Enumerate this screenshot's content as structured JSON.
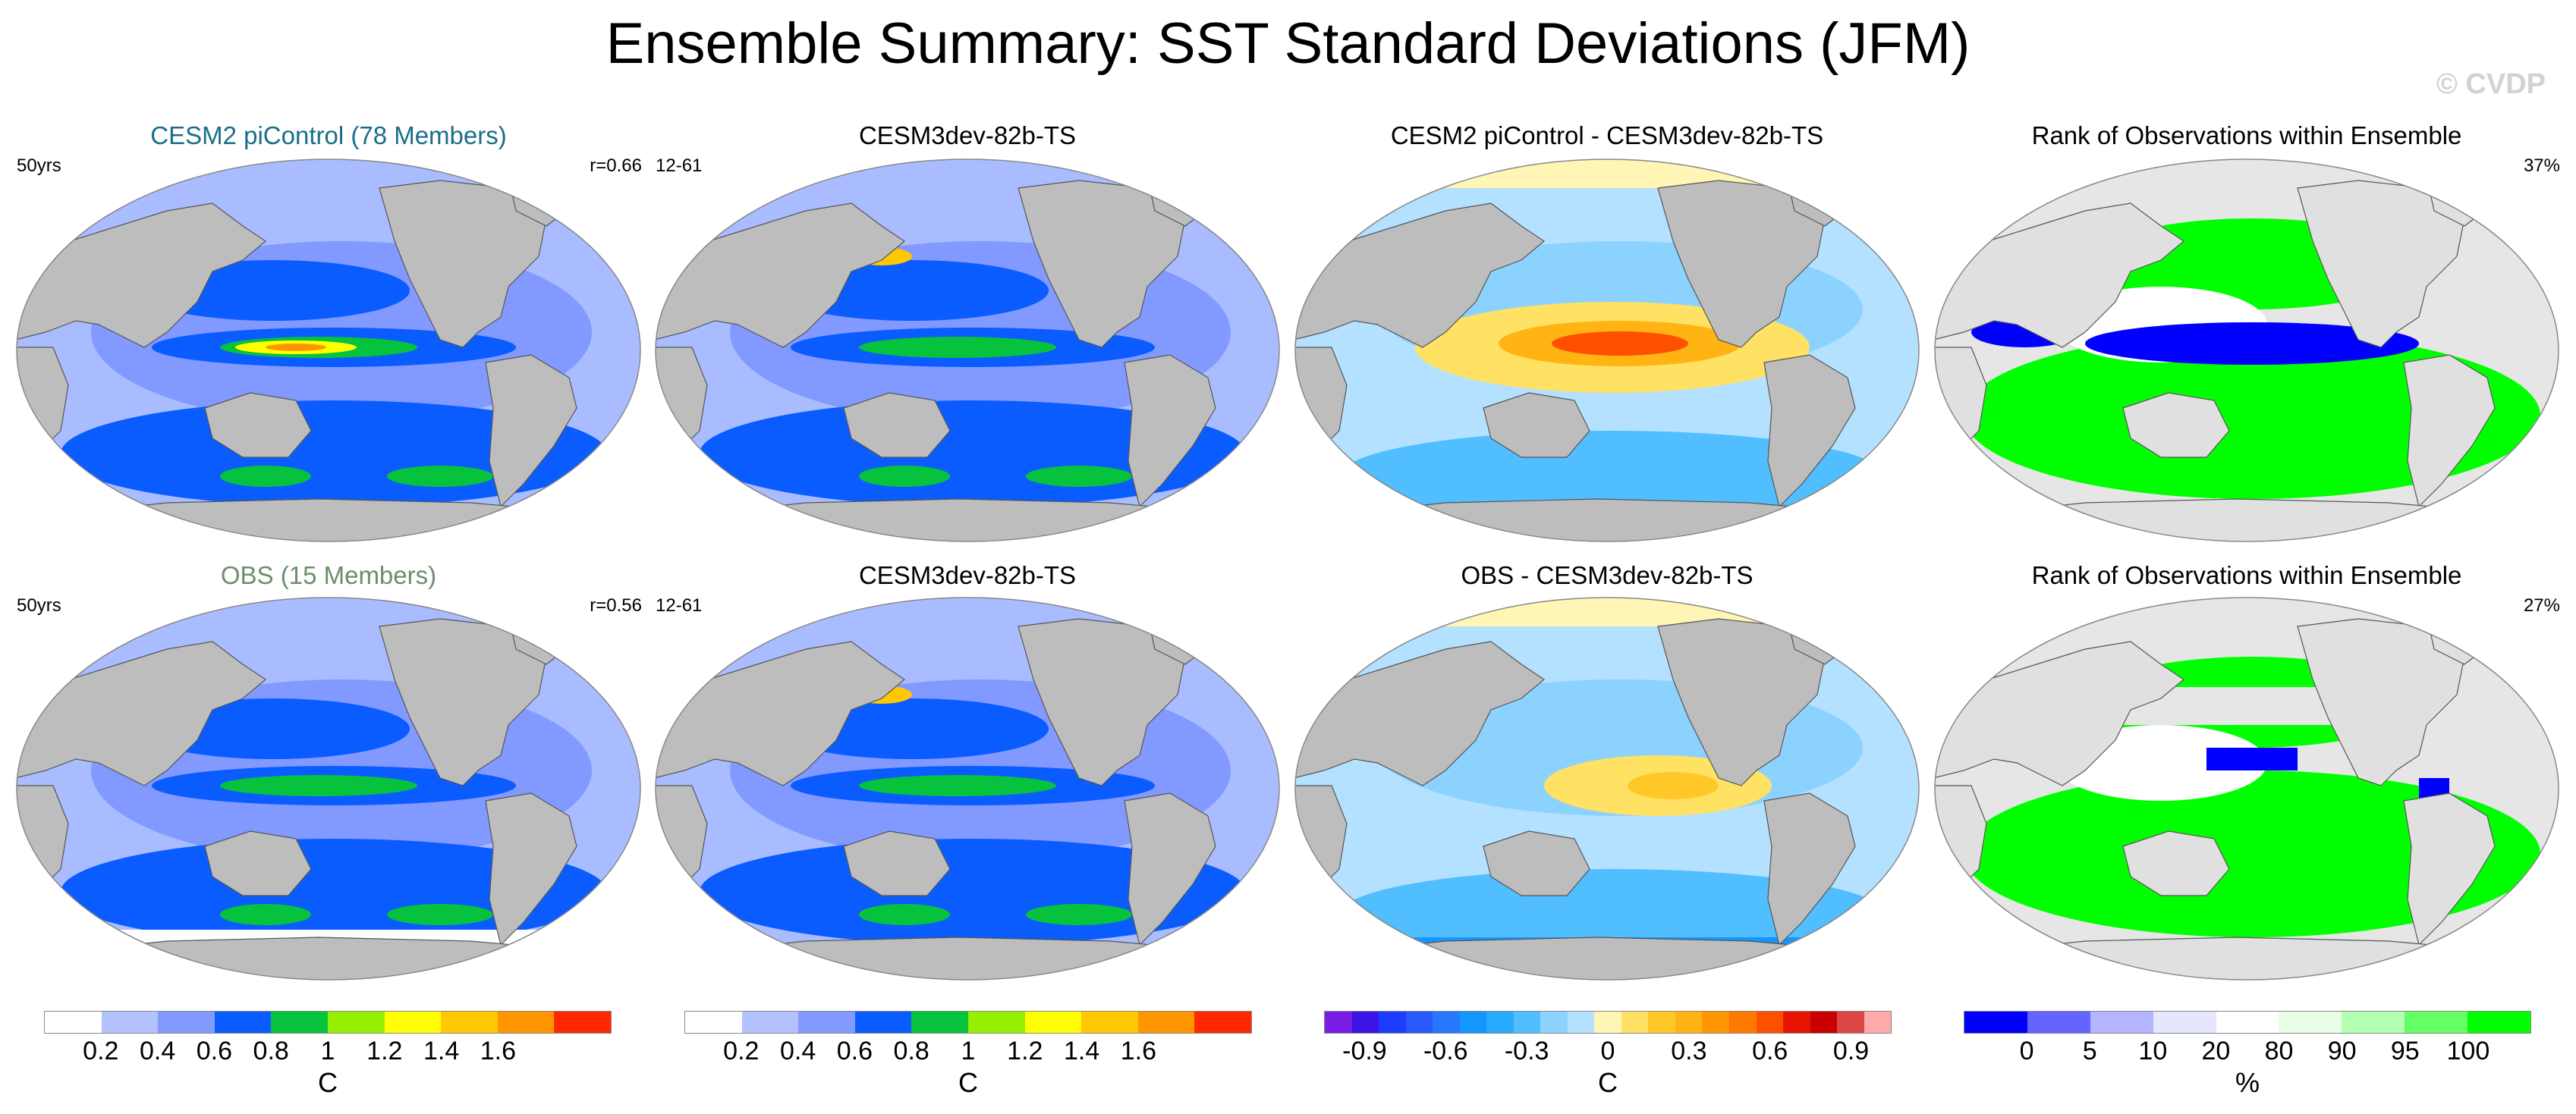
{
  "title": "Ensemble Summary: SST Standard Deviations (JFM)",
  "watermark": "© CVDP",
  "colors": {
    "ocean_base": "#a9bcff",
    "land": "#bdbdbd",
    "title_teal": "#1a6e8a",
    "title_green": "#6d8d6d"
  },
  "panels": [
    {
      "id": "r1c1",
      "title": "CESM2 piControl (78 Members)",
      "title_color": "#1a6e8a",
      "left_label": "50yrs",
      "right_label": "r=0.66",
      "scheme": "sd"
    },
    {
      "id": "r1c2",
      "title": "CESM3dev-82b-TS",
      "title_color": "#000000",
      "left_label": "12-61",
      "right_label": "",
      "scheme": "sd"
    },
    {
      "id": "r1c3",
      "title": "CESM2 piControl - CESM3dev-82b-TS",
      "title_color": "#000000",
      "left_label": "",
      "right_label": "",
      "scheme": "diff"
    },
    {
      "id": "r1c4",
      "title": "Rank of Observations within Ensemble",
      "title_color": "#000000",
      "left_label": "",
      "right_label": "37%",
      "scheme": "rank"
    },
    {
      "id": "r2c1",
      "title": "OBS (15 Members)",
      "title_color": "#6d8d6d",
      "left_label": "50yrs",
      "right_label": "r=0.56",
      "scheme": "sd"
    },
    {
      "id": "r2c2",
      "title": "CESM3dev-82b-TS",
      "title_color": "#000000",
      "left_label": "12-61",
      "right_label": "",
      "scheme": "sd"
    },
    {
      "id": "r2c3",
      "title": "OBS - CESM3dev-82b-TS",
      "title_color": "#000000",
      "left_label": "",
      "right_label": "",
      "scheme": "diff"
    },
    {
      "id": "r2c4",
      "title": "Rank of Observations within Ensemble",
      "title_color": "#000000",
      "left_label": "",
      "right_label": "27%",
      "scheme": "rank"
    }
  ],
  "colorbars": [
    {
      "id": "cb1",
      "unit": "C",
      "ticks": [
        "0.2",
        "0.4",
        "0.6",
        "0.8",
        "1",
        "1.2",
        "1.4",
        "1.6"
      ],
      "colors": [
        "#ffffff",
        "#b4c3ff",
        "#8299ff",
        "#0a5cff",
        "#07c23c",
        "#97f000",
        "#ffff00",
        "#ffc800",
        "#ff9600",
        "#ff2800"
      ]
    },
    {
      "id": "cb2",
      "unit": "C",
      "ticks": [
        "0.2",
        "0.4",
        "0.6",
        "0.8",
        "1",
        "1.2",
        "1.4",
        "1.6"
      ],
      "colors": [
        "#ffffff",
        "#b4c3ff",
        "#8299ff",
        "#0a5cff",
        "#07c23c",
        "#97f000",
        "#ffff00",
        "#ffc800",
        "#ff9600",
        "#ff2800"
      ]
    },
    {
      "id": "cb3",
      "unit": "C",
      "ticks": [
        "-0.9",
        "-0.6",
        "-0.3",
        "0",
        "0.3",
        "0.6",
        "0.9"
      ],
      "colors": [
        "#7a1ee6",
        "#3c14e6",
        "#1e3cff",
        "#285aff",
        "#2878ff",
        "#1496ff",
        "#28aaff",
        "#50beff",
        "#8cd2ff",
        "#b4e1ff",
        "#fff5b4",
        "#ffe164",
        "#ffc828",
        "#ffb414",
        "#ff9600",
        "#ff7800",
        "#ff5000",
        "#e61400",
        "#c80000",
        "#dc4646",
        "#ffaaaa"
      ]
    },
    {
      "id": "cb4",
      "unit": "%",
      "ticks": [
        "0",
        "5",
        "10",
        "20",
        "80",
        "90",
        "95",
        "100"
      ],
      "colors": [
        "#0000ff",
        "#6464ff",
        "#b4b4ff",
        "#e6e6ff",
        "#ffffff",
        "#e6ffe6",
        "#b4ffb4",
        "#64ff64",
        "#00ff00"
      ]
    }
  ]
}
